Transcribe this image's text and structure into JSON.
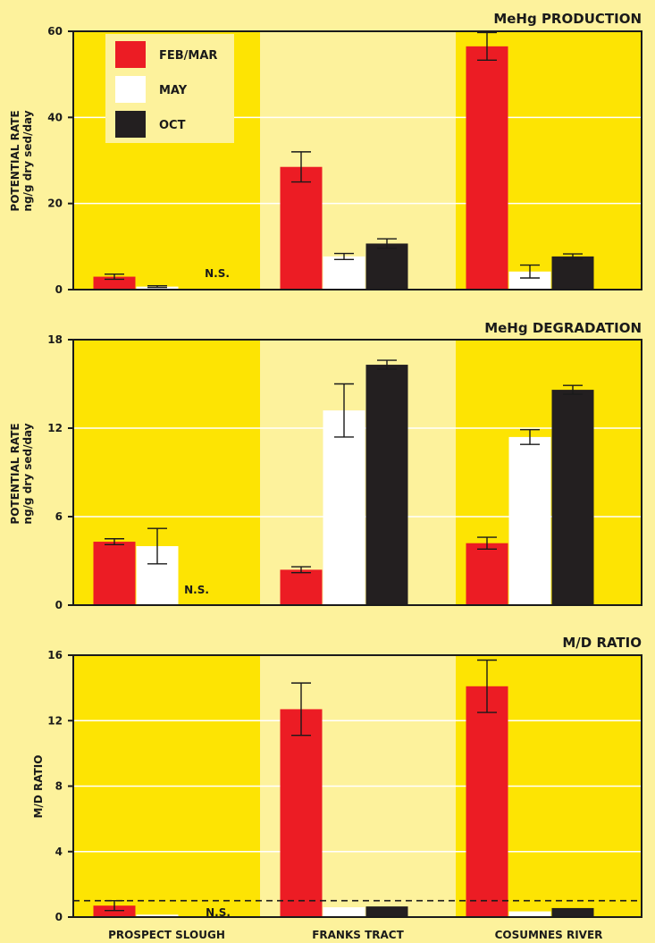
{
  "colors": {
    "background": "#fdf29c",
    "band_dark": "#fde403",
    "band_light": "#fdf29c",
    "FEB/MAR": "#ec1c24",
    "MAY": "#ffffff",
    "OCT": "#231f20",
    "gridline": "#ffffff"
  },
  "chart_data": [
    {
      "type": "bar",
      "title": "MeHg PRODUCTION",
      "ylabel": [
        "POTENTIAL RATE",
        "ng/g dry sed/day"
      ],
      "ylim": [
        0,
        60
      ],
      "yticks": [
        0,
        20,
        40,
        60
      ],
      "grid": true,
      "categories": [
        "PROSPECT SLOUGH",
        "FRANKS TRACT",
        "COSUMNES RIVER"
      ],
      "legend": {
        "placement": "top-left",
        "entries": [
          "FEB/MAR",
          "MAY",
          "OCT"
        ]
      },
      "annotation": "N.S.",
      "series": [
        {
          "name": "FEB/MAR",
          "values": [
            3.0,
            28.5,
            56.5
          ],
          "errors": [
            0.6,
            3.5,
            3.2
          ]
        },
        {
          "name": "MAY",
          "values": [
            0.7,
            7.7,
            4.2
          ],
          "errors": [
            0.2,
            0.7,
            1.5
          ]
        },
        {
          "name": "OCT",
          "values": [
            null,
            10.7,
            7.7
          ],
          "errors": [
            null,
            1.1,
            0.6
          ]
        }
      ]
    },
    {
      "type": "bar",
      "title": "MeHg DEGRADATION",
      "ylabel": [
        "POTENTIAL RATE",
        "ng/g dry sed/day"
      ],
      "ylim": [
        0,
        18
      ],
      "yticks": [
        0,
        6,
        12,
        18
      ],
      "grid": true,
      "categories": [
        "PROSPECT SLOUGH",
        "FRANKS TRACT",
        "COSUMNES RIVER"
      ],
      "annotation": "N.S.",
      "series": [
        {
          "name": "FEB/MAR",
          "values": [
            4.3,
            2.4,
            4.2
          ],
          "errors": [
            0.2,
            0.2,
            0.4
          ]
        },
        {
          "name": "MAY",
          "values": [
            4.0,
            13.2,
            11.4
          ],
          "errors": [
            1.2,
            1.8,
            0.5
          ]
        },
        {
          "name": "OCT",
          "values": [
            null,
            16.3,
            14.6
          ],
          "errors": [
            null,
            0.3,
            0.3
          ]
        }
      ]
    },
    {
      "type": "bar",
      "title": "M/D RATIO",
      "ylabel": [
        "M/D RATIO"
      ],
      "ylim": [
        0,
        16
      ],
      "yticks": [
        0,
        4,
        8,
        12,
        16
      ],
      "grid": true,
      "reference_line": 1,
      "categories": [
        "PROSPECT SLOUGH",
        "FRANKS TRACT",
        "COSUMNES RIVER"
      ],
      "category_labels_shown": true,
      "annotation": "N.S.",
      "series": [
        {
          "name": "FEB/MAR",
          "values": [
            0.7,
            12.7,
            14.1
          ],
          "errors": [
            0.3,
            1.6,
            1.6
          ]
        },
        {
          "name": "MAY",
          "values": [
            0.15,
            0.6,
            0.35
          ],
          "errors": [
            null,
            null,
            null
          ]
        },
        {
          "name": "OCT",
          "values": [
            null,
            0.65,
            0.55
          ],
          "errors": [
            null,
            null,
            null
          ]
        }
      ]
    }
  ]
}
